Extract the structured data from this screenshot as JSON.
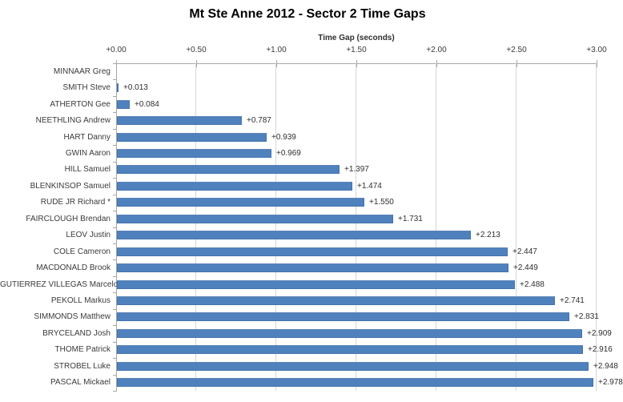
{
  "chart_data": {
    "type": "bar",
    "orientation": "horizontal",
    "title": "Mt Ste Anne 2012 - Sector 2 Time Gaps",
    "xlabel": "Time Gap (seconds)",
    "xlim": [
      0,
      3.0
    ],
    "x_tick_values": [
      0,
      0.5,
      1.0,
      1.5,
      2.0,
      2.5,
      3.0
    ],
    "x_tick_labels": [
      "+0.00",
      "+0.50",
      "+1.00",
      "+1.50",
      "+2.00",
      "+2.50",
      "+3.00"
    ],
    "grid": "vertical-on",
    "legend": "none",
    "bar_color": "#4F81BD",
    "gridline_color": "#d6d6d6",
    "axis_color": "#a6a6a6",
    "categories": [
      "MINNAAR Greg",
      "SMITH Steve",
      "ATHERTON Gee",
      "NEETHLING Andrew",
      "HART Danny",
      "GWIN Aaron",
      "HILL Samuel",
      "BLENKINSOP Samuel",
      "RUDE JR Richard *",
      "FAIRCLOUGH Brendan",
      "LEOV Justin",
      "COLE Cameron",
      "MACDONALD Brook",
      "GUTIERREZ VILLEGAS Marcelo",
      "PEKOLL Markus",
      "SIMMONDS Matthew",
      "BRYCELAND Josh",
      "THOME Patrick",
      "STROBEL Luke",
      "PASCAL Mickael"
    ],
    "values": [
      0,
      0.013,
      0.084,
      0.787,
      0.939,
      0.969,
      1.397,
      1.474,
      1.55,
      1.731,
      2.213,
      2.447,
      2.449,
      2.488,
      2.741,
      2.831,
      2.909,
      2.916,
      2.948,
      2.978
    ],
    "data_labels": [
      "",
      "+0.013",
      "+0.084",
      "+0.787",
      "+0.939",
      "+0.969",
      "+1.397",
      "+1.474",
      "+1.550",
      "+1.731",
      "+2.213",
      "+2.447",
      "+2.449",
      "+2.488",
      "+2.741",
      "+2.831",
      "+2.909",
      "+2.916",
      "+2.948",
      "+2.978"
    ]
  }
}
